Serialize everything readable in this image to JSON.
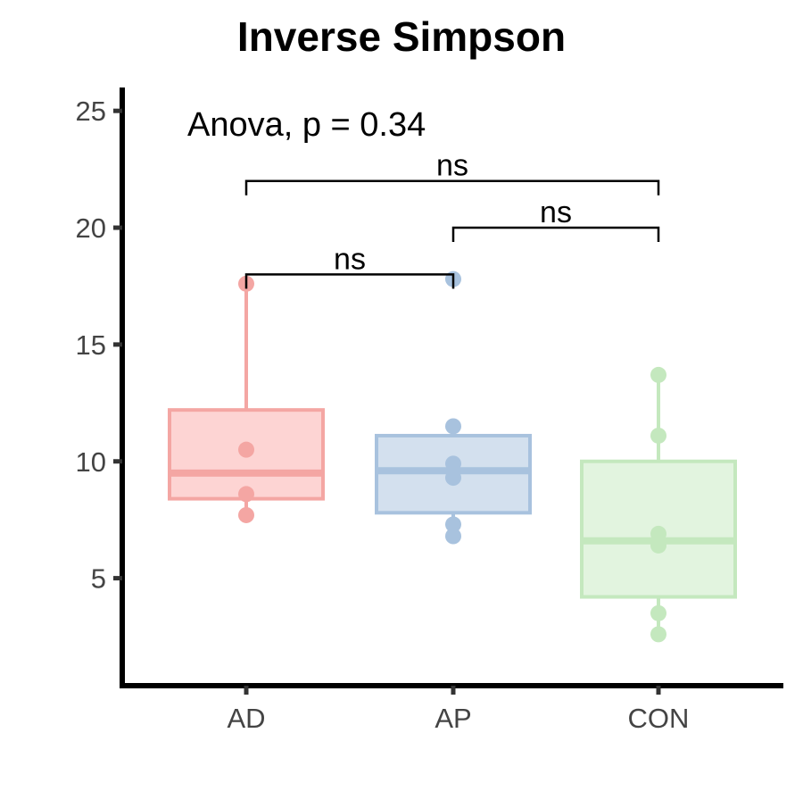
{
  "chart_data": {
    "type": "box",
    "title": "Inverse Simpson",
    "xlabel": "",
    "ylabel": "",
    "categories": [
      "AD",
      "AP",
      "CON"
    ],
    "ylim": [
      0.4,
      26.0
    ],
    "yticks": [
      5,
      10,
      15,
      20,
      25
    ],
    "grid": false,
    "legend": "none",
    "annotation": "Anova, p = 0.34",
    "groups": [
      {
        "name": "AD",
        "color": "#F4A6A3",
        "fill": "#FDD4D3",
        "whisker_low": 7.7,
        "q1": 8.4,
        "median": 9.5,
        "q3": 12.2,
        "whisker_high": 17.6,
        "points": [
          17.6,
          10.5,
          8.6,
          7.7
        ]
      },
      {
        "name": "AP",
        "color": "#A8C2DE",
        "fill": "#D3E0EE",
        "whisker_low": 6.8,
        "q1": 7.8,
        "median": 9.6,
        "q3": 11.1,
        "whisker_high": 11.5,
        "points": [
          17.8,
          11.5,
          9.9,
          9.3,
          7.3,
          6.8
        ]
      },
      {
        "name": "CON",
        "color": "#C4E8BE",
        "fill": "#E2F4DF",
        "whisker_low": 2.6,
        "q1": 4.2,
        "median": 6.6,
        "q3": 10.0,
        "whisker_high": 13.7,
        "points": [
          13.7,
          11.1,
          6.9,
          6.4,
          3.5,
          2.6
        ]
      }
    ],
    "comparisons": [
      {
        "from": "AD",
        "to": "AP",
        "y": 18.0,
        "label": "ns"
      },
      {
        "from": "AP",
        "to": "CON",
        "y": 20.0,
        "label": "ns"
      },
      {
        "from": "AD",
        "to": "CON",
        "y": 22.0,
        "label": "ns"
      }
    ]
  }
}
